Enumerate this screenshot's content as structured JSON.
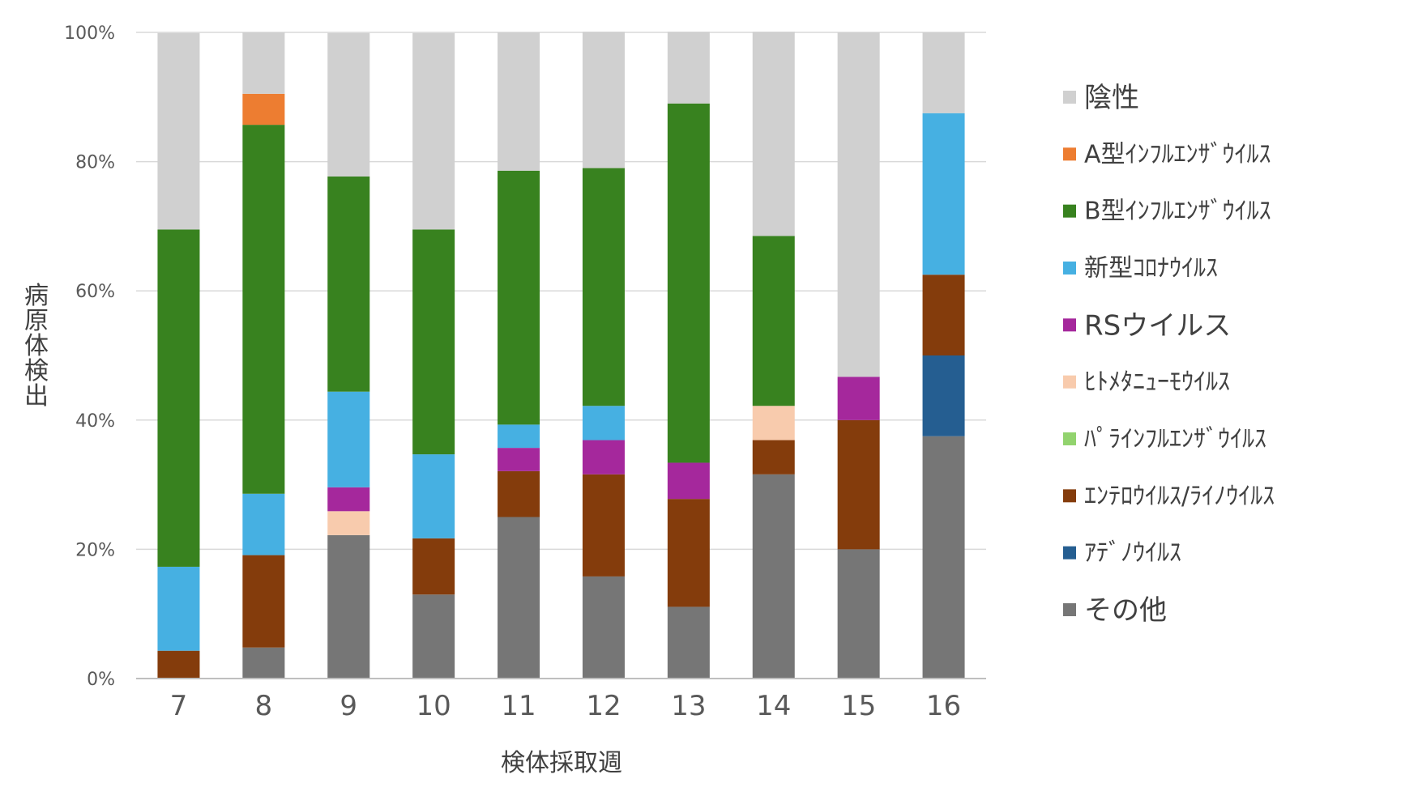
{
  "chart_data": {
    "type": "bar",
    "stacked": true,
    "percent": true,
    "title": "",
    "xlabel": "検体採取週",
    "ylabel": "病原体検出",
    "ylim": [
      0,
      100
    ],
    "yticks": [
      "0%",
      "20%",
      "40%",
      "60%",
      "80%",
      "100%"
    ],
    "grid": true,
    "legend_position": "right",
    "categories": [
      "7",
      "8",
      "9",
      "10",
      "11",
      "12",
      "13",
      "14",
      "15",
      "16"
    ],
    "series": [
      {
        "name": "その他",
        "color": "#767676",
        "values": [
          0,
          4.8,
          22.2,
          13.0,
          25.0,
          15.8,
          11.1,
          31.6,
          20.0,
          37.5
        ]
      },
      {
        "name": "アデノウイルス",
        "color": "#255e91",
        "values": [
          0,
          0,
          0,
          0,
          0,
          0,
          0,
          0,
          0,
          12.5
        ]
      },
      {
        "name": "エンテロウイルス/ライノウイルス",
        "color": "#843c0c",
        "values": [
          4.3,
          14.3,
          0,
          8.7,
          7.1,
          15.8,
          16.7,
          5.3,
          20.0,
          12.5
        ]
      },
      {
        "name": "パラインフルエンザウイルス",
        "color": "#92d36e",
        "values": [
          0,
          0,
          0,
          0,
          0,
          0,
          0,
          0,
          0,
          0
        ]
      },
      {
        "name": "ヒトメタニューモウイルス",
        "color": "#f8cbad",
        "values": [
          0,
          0,
          3.7,
          0,
          0,
          0,
          0,
          5.3,
          0,
          0
        ]
      },
      {
        "name": "RSウイルス",
        "color": "#a5289c",
        "values": [
          0,
          0,
          3.7,
          0,
          3.6,
          5.3,
          5.6,
          0,
          6.7,
          0
        ]
      },
      {
        "name": "新型コロナウイルス",
        "color": "#46b0e2",
        "values": [
          13.0,
          9.5,
          14.8,
          13.0,
          3.6,
          5.3,
          0,
          0,
          0,
          25.0
        ]
      },
      {
        "name": "B型インフルエンザウイルス",
        "color": "#38821f",
        "values": [
          52.2,
          57.1,
          33.3,
          34.8,
          39.3,
          36.8,
          55.6,
          26.3,
          0,
          0
        ]
      },
      {
        "name": "A型インフルエンザウイルス",
        "color": "#ed7d31",
        "values": [
          0,
          4.8,
          0,
          0,
          0,
          0,
          0,
          0,
          0,
          0
        ]
      },
      {
        "name": "陰性",
        "color": "#d0d0d0",
        "values": [
          30.4,
          9.5,
          22.2,
          30.4,
          21.4,
          21.1,
          11.1,
          31.6,
          53.3,
          12.5
        ]
      }
    ],
    "legend_order": [
      "陰性",
      "A型インフルエンザウイルス",
      "B型インフルエンザウイルス",
      "新型コロナウイルス",
      "RSウイルス",
      "ヒトメタニューモウイルス",
      "パラインフルエンザウイルス",
      "エンテロウイルス/ライノウイルス",
      "アデノウイルス",
      "その他"
    ]
  },
  "legend_labels": {
    "陰性": "陰性",
    "A型インフルエンザウイルス": "A型ｲﾝﾌﾙｴﾝｻﾞｳｲﾙｽ",
    "B型インフルエンザウイルス": "B型ｲﾝﾌﾙｴﾝｻﾞｳｲﾙｽ",
    "新型コロナウイルス": "新型ｺﾛﾅｳｲﾙｽ",
    "RSウイルス": "RSウイルス",
    "ヒトメタニューモウイルス": "ﾋﾄﾒﾀﾆｭｰﾓｳｲﾙｽ",
    "パラインフルエンザウイルス": "ﾊﾟﾗｲﾝﾌﾙｴﾝｻﾞｳｲﾙｽ",
    "エンテロウイルス/ライノウイルス": "ｴﾝﾃﾛｳｲﾙｽ/ﾗｲﾉｳｲﾙｽ",
    "アデノウイルス": "ｱﾃﾞﾉｳｲﾙｽ",
    "その他": "その他"
  }
}
